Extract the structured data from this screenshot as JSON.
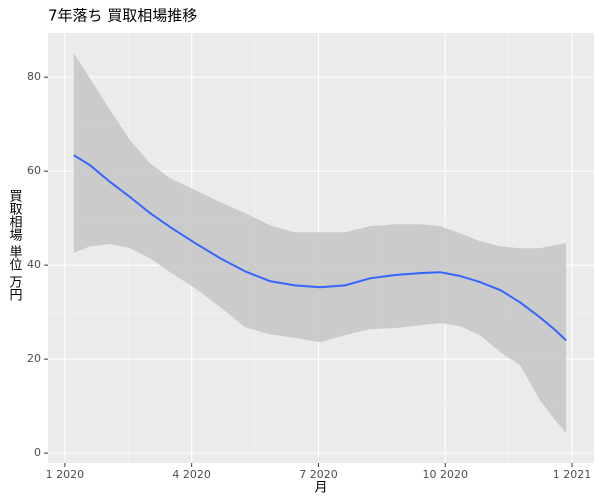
{
  "chart_data": {
    "type": "smooth",
    "title": "7年落ち 買取相場推移",
    "x_label": "月",
    "y_label": "買取相場 単位 万円",
    "x": [
      1.21,
      1.59,
      2.07,
      2.54,
      3.01,
      3.49,
      4.08,
      4.67,
      5.26,
      5.85,
      6.44,
      7.04,
      7.63,
      8.22,
      8.81,
      9.4,
      9.88,
      10.35,
      10.82,
      11.3,
      11.77,
      12.24,
      12.6,
      12.86
    ],
    "series": [
      {
        "color": "#3366ff",
        "values": [
          63.4,
          61.3,
          57.7,
          54.5,
          51.1,
          48.1,
          44.7,
          41.5,
          38.7,
          36.6,
          35.7,
          35.3,
          35.7,
          37.2,
          37.9,
          38.3,
          38.5,
          37.7,
          36.4,
          34.7,
          32.1,
          28.9,
          26.2,
          24.0
        ]
      }
    ],
    "band": {
      "color": "#c8c8c8",
      "upper": [
        85.1,
        79.8,
        73.0,
        66.6,
        61.7,
        58.5,
        56.0,
        53.4,
        51.1,
        48.5,
        47.0,
        47.0,
        47.0,
        48.3,
        48.7,
        48.7,
        48.3,
        46.8,
        45.1,
        44.0,
        43.6,
        43.6,
        44.3,
        44.7
      ],
      "lower": [
        42.6,
        44.0,
        44.5,
        43.6,
        41.5,
        38.5,
        35.1,
        31.1,
        26.8,
        25.3,
        24.5,
        23.6,
        25.1,
        26.4,
        26.6,
        27.2,
        27.7,
        27.0,
        25.1,
        21.5,
        18.7,
        11.3,
        7.0,
        4.3
      ]
    },
    "xlim": [
      0.6,
      13.52
    ],
    "ylim": [
      -2.1,
      89.4
    ],
    "xticks": [
      {
        "value": 1,
        "label": "1 2020"
      },
      {
        "value": 4,
        "label": "4 2020"
      },
      {
        "value": 7,
        "label": "7 2020"
      },
      {
        "value": 10,
        "label": "10 2020"
      },
      {
        "value": 13,
        "label": "1 2021"
      }
    ],
    "yticks": [
      0,
      20,
      40,
      60,
      80
    ],
    "grid": true
  }
}
